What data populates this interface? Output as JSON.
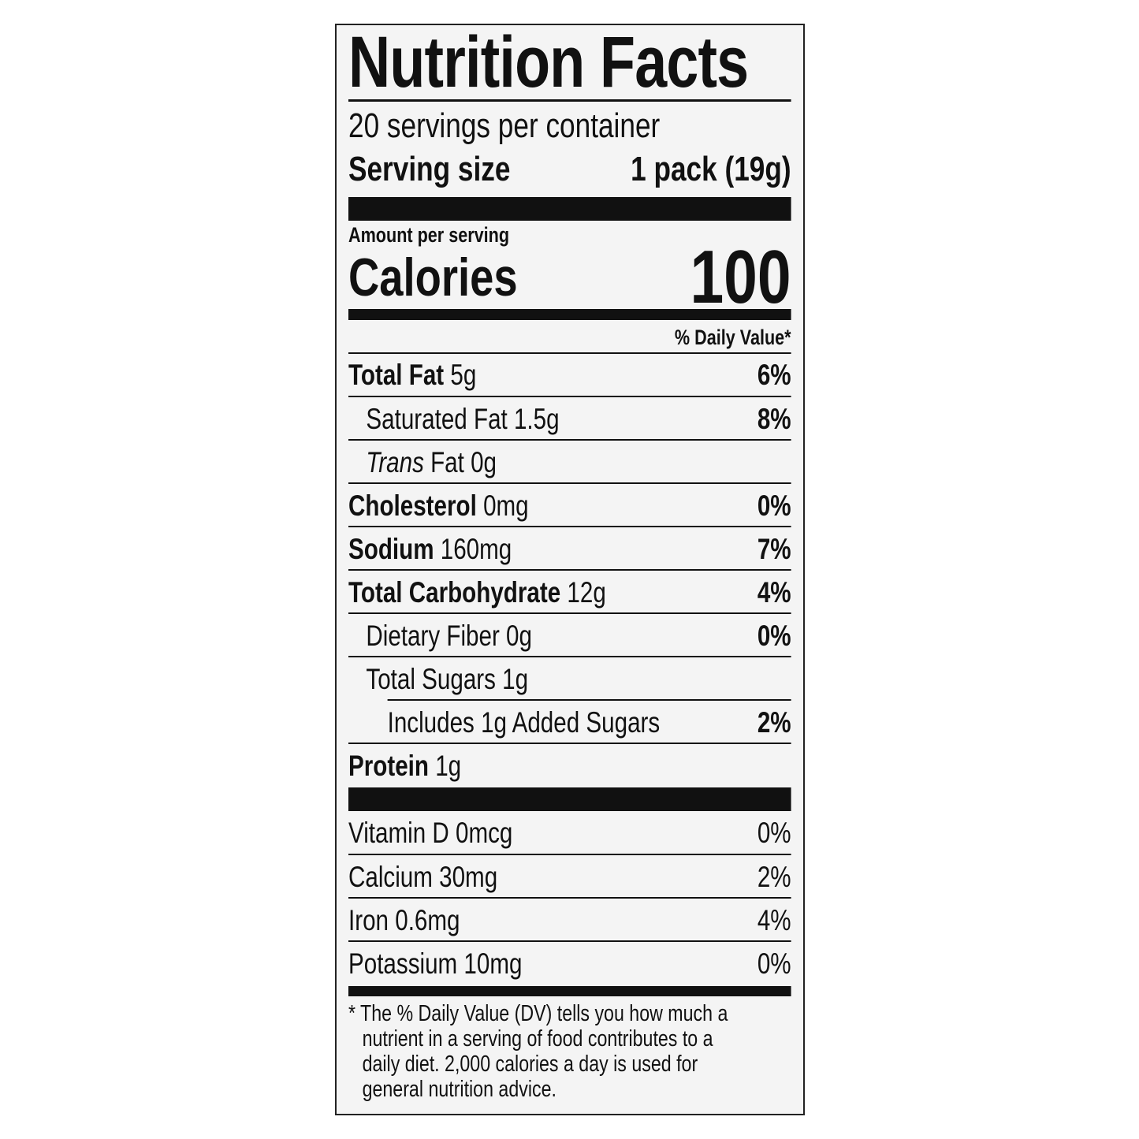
{
  "title": "Nutrition Facts",
  "servings_per_container": "20 servings per container",
  "serving_size": {
    "label": "Serving size",
    "value": "1 pack (19g)"
  },
  "amount_per_serving": "Amount per serving",
  "calories": {
    "label": "Calories",
    "value": "100"
  },
  "daily_value_header": "% Daily Value*",
  "nutrients": [
    {
      "name": "Total Fat",
      "amount": "5g",
      "dv": "6%"
    },
    {
      "name": "Saturated Fat",
      "amount": "1.5g",
      "dv": "8%"
    },
    {
      "name_italic": "Trans",
      "name": "Fat",
      "amount": "0g",
      "dv": ""
    },
    {
      "name": "Cholesterol",
      "amount": "0mg",
      "dv": "0%"
    },
    {
      "name": "Sodium",
      "amount": "160mg",
      "dv": "7%"
    },
    {
      "name": "Total Carbohydrate",
      "amount": "12g",
      "dv": "4%"
    },
    {
      "name": "Dietary Fiber",
      "amount": "0g",
      "dv": "0%"
    },
    {
      "name": "Total Sugars",
      "amount": "1g",
      "dv": ""
    },
    {
      "name": "Includes 1g Added Sugars",
      "amount": "",
      "dv": "2%"
    },
    {
      "name": "Protein",
      "amount": "1g",
      "dv": ""
    }
  ],
  "vitamins": [
    {
      "text": "Vitamin D 0mcg",
      "dv": "0%"
    },
    {
      "text": "Calcium 30mg",
      "dv": "2%"
    },
    {
      "text": "Iron 0.6mg",
      "dv": "4%"
    },
    {
      "text": "Potassium 10mg",
      "dv": "0%"
    }
  ],
  "footnote": [
    "* The % Daily Value (DV) tells you how much a",
    "nutrient in a serving of food contributes to a",
    "daily diet. 2,000 calories a day is used for",
    "general nutrition advice."
  ]
}
